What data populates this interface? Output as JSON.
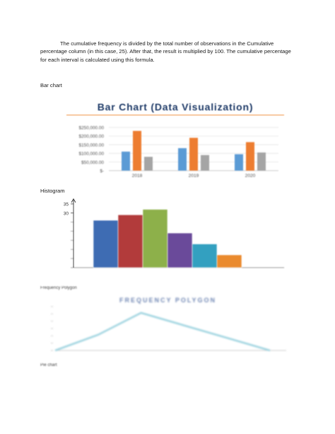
{
  "document": {
    "paragraph": "The cumulative frequency is divided by the total number of observations in the Cumulative percentage column (in this case, 25). After that, the result is multiplied by 100. The cumulative percentage for each interval is calculated using this formula.",
    "bar_chart_label": "Bar chart",
    "histogram_label": "Histogram",
    "frequency_polygon_label": "Frequency Polygon",
    "pie_chart_label": "Pie chart"
  },
  "colors": {
    "bar_blue": "#5b9bd5",
    "bar_orange": "#ed7d31",
    "bar_gray": "#a5a5a5",
    "title_navy": "#1f3b68",
    "title_rule": "#f0903e",
    "polygon_line": "#9fd4e0"
  },
  "chart_data": [
    {
      "type": "bar",
      "title": "Bar Chart (Data Visualization)",
      "categories": [
        "2018",
        "2019",
        "2020"
      ],
      "series": [
        {
          "values": [
            110000,
            130000,
            95000
          ],
          "color": "#5b9bd5"
        },
        {
          "values": [
            230000,
            190000,
            165000
          ],
          "color": "#ed7d31"
        },
        {
          "values": [
            80000,
            90000,
            105000
          ],
          "color": "#a5a5a5"
        }
      ],
      "ylim": [
        0,
        250000
      ],
      "yticks": [
        0,
        50000,
        100000,
        150000,
        200000,
        250000
      ],
      "ytick_labels": [
        "$-",
        "$50,000.00",
        "$100,000.00",
        "$150,000.00",
        "$200,000.00",
        "$250,000.00"
      ],
      "grid": true
    },
    {
      "type": "bar",
      "title": "",
      "values": [
        26,
        29,
        32,
        19,
        13,
        7
      ],
      "colors": [
        "#3e6cb3",
        "#b23b3b",
        "#8db04a",
        "#6a4a9a",
        "#33a0c0",
        "#ea8a2e"
      ],
      "ylim": [
        0,
        35
      ],
      "yticks": [
        30,
        35
      ],
      "ytick_labels": [
        "30",
        "35"
      ],
      "grid": false
    },
    {
      "type": "line",
      "title": "FREQUENCY POLYGON",
      "x": [
        0,
        1,
        2,
        3,
        4,
        5
      ],
      "values": [
        0,
        5,
        12,
        8,
        4,
        0
      ],
      "ylim": [
        0,
        14
      ],
      "color": "#9fd4e0"
    }
  ]
}
